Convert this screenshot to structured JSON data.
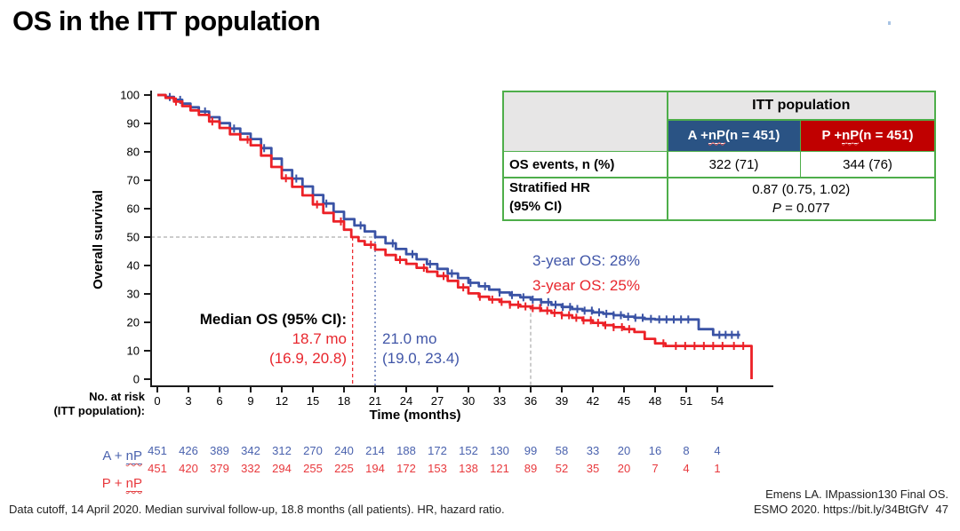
{
  "slide": {
    "title": "OS in the ITT population",
    "footnote": "Data cutoff, 14 April 2020. Median survival follow-up, 18.8 months (all patients). HR, hazard ratio.",
    "citation_line1": "Emens LA. IMpassion130 Final OS.",
    "citation_line2": "ESMO 2020. https://bit.ly/34BtGfV",
    "page_number": "47"
  },
  "colors": {
    "curve_blue": "#3a53a5",
    "curve_red": "#ec2127",
    "table_blue": "#2a5384",
    "table_red": "#c00000",
    "table_border_green": "#4eae4a",
    "dashed_gray": "#999999"
  },
  "results_table": {
    "group_header": "ITT population",
    "arm_a": {
      "pre": "A + ",
      "np": "nP",
      "post": " (n = 451)"
    },
    "arm_p": {
      "pre": "P + ",
      "np": "nP",
      "post": " (n = 451)"
    },
    "os_events": {
      "label": "OS events, n (%)",
      "a": "322 (71)",
      "p": "344 (76)"
    },
    "hr": {
      "label_line1": "Stratified HR",
      "label_line2": "(95% CI)",
      "value": "0.87 (0.75, 1.02)",
      "p_italic": "P",
      "p_rest": " = 0.077"
    }
  },
  "annotations": {
    "median_title": "Median OS (95% CI):",
    "red_median": "18.7 mo",
    "red_ci": "(16.9, 20.8)",
    "blue_median": "21.0 mo",
    "blue_ci": "(19.0, 23.4)",
    "blue_3yr": "3-year OS: 28%",
    "red_3yr": "3-year OS: 25%"
  },
  "no_at_risk": {
    "label_line1": "No. at risk",
    "label_line2": "(ITT population):",
    "arm_a": {
      "pre": "A + ",
      "np": "nP"
    },
    "arm_p": {
      "pre": "P + ",
      "np": "nP"
    },
    "rows": [
      {
        "name": "A + nP",
        "color": "#4a62ae",
        "values": [
          451,
          426,
          389,
          342,
          312,
          270,
          240,
          214,
          188,
          172,
          152,
          130,
          99,
          58,
          33,
          20,
          16,
          8,
          4
        ]
      },
      {
        "name": "P + nP",
        "color": "#e8393d",
        "values": [
          451,
          420,
          379,
          332,
          294,
          255,
          225,
          194,
          172,
          153,
          138,
          121,
          89,
          52,
          35,
          20,
          7,
          4,
          1
        ]
      }
    ]
  },
  "chart_data": {
    "type": "line",
    "style": "kaplan-meier-step",
    "title": "",
    "xlabel": "Time (months)",
    "ylabel": "Overall survival",
    "xlim": [
      0,
      57.5
    ],
    "ylim": [
      0,
      100
    ],
    "xticks": [
      0,
      3,
      6,
      9,
      12,
      15,
      18,
      21,
      24,
      27,
      30,
      33,
      36,
      39,
      42,
      45,
      48,
      51,
      54
    ],
    "yticks": [
      0,
      10,
      20,
      30,
      40,
      50,
      60,
      70,
      80,
      90,
      100
    ],
    "grid": false,
    "legend_position": "none",
    "median_survival_line_percent": 50,
    "three_year_month": 36,
    "series": [
      {
        "name": "A + nP",
        "color": "#3a53a5",
        "median_months": 21.0,
        "median_ci": [
          19.0,
          23.4
        ],
        "three_year_os_percent": 28,
        "points": [
          [
            0,
            100
          ],
          [
            0.8,
            99.3
          ],
          [
            1.6,
            98.3
          ],
          [
            2.4,
            97
          ],
          [
            3.2,
            95.7
          ],
          [
            4,
            94.2
          ],
          [
            5,
            92.2
          ],
          [
            6,
            90.1
          ],
          [
            7,
            88.2
          ],
          [
            8,
            86.4
          ],
          [
            9,
            84.5
          ],
          [
            10,
            81.3
          ],
          [
            11,
            77.6
          ],
          [
            12,
            73.6
          ],
          [
            13,
            70.6
          ],
          [
            14,
            67.8
          ],
          [
            15,
            64.8
          ],
          [
            16,
            61.8
          ],
          [
            17,
            58.9
          ],
          [
            18,
            56.3
          ],
          [
            19,
            54.1
          ],
          [
            20,
            52
          ],
          [
            21,
            50
          ],
          [
            22,
            47.8
          ],
          [
            23,
            45.8
          ],
          [
            24,
            44
          ],
          [
            25,
            42.2
          ],
          [
            26,
            40.5
          ],
          [
            27,
            38.8
          ],
          [
            28,
            37.2
          ],
          [
            29,
            35.6
          ],
          [
            30,
            33.9
          ],
          [
            31,
            32.7
          ],
          [
            32,
            31.5
          ],
          [
            33,
            30.5
          ],
          [
            34,
            29.6
          ],
          [
            35,
            28.8
          ],
          [
            36,
            28
          ],
          [
            37,
            27.1
          ],
          [
            38,
            26.2
          ],
          [
            39,
            25.4
          ],
          [
            40,
            24.7
          ],
          [
            41,
            24.1
          ],
          [
            42,
            23.5
          ],
          [
            43,
            23
          ],
          [
            44,
            22.5
          ],
          [
            45,
            22
          ],
          [
            46,
            21.6
          ],
          [
            47,
            21.2
          ],
          [
            48,
            21
          ],
          [
            51.8,
            21
          ],
          [
            52.2,
            17.6
          ],
          [
            53.6,
            15.6
          ],
          [
            56.2,
            15.6
          ]
        ],
        "censor_months": [
          1.2,
          2.2,
          4.6,
          7.4,
          10.3,
          13.4,
          16.3,
          19.6,
          22.7,
          24.6,
          26.3,
          28.4,
          30.2,
          31.6,
          33,
          34.2,
          35.3,
          36.2,
          37,
          37.7,
          38.4,
          39.1,
          39.8,
          40.5,
          41.2,
          41.9,
          42.6,
          43.3,
          44,
          44.7,
          45.4,
          46.1,
          46.8,
          47.6,
          48.4,
          49.1,
          49.8,
          50.5,
          51.2,
          54.2,
          54.8,
          55.4,
          56
        ]
      },
      {
        "name": "P + nP",
        "color": "#ec2127",
        "median_months": 18.7,
        "median_ci": [
          16.9,
          20.8
        ],
        "three_year_os_percent": 25,
        "points": [
          [
            0,
            100
          ],
          [
            0.8,
            99
          ],
          [
            1.6,
            97.7
          ],
          [
            2.4,
            96.1
          ],
          [
            3.2,
            94.6
          ],
          [
            4,
            93
          ],
          [
            5,
            90.7
          ],
          [
            6,
            88.4
          ],
          [
            7,
            86.2
          ],
          [
            8,
            84.3
          ],
          [
            9,
            82.3
          ],
          [
            10,
            78.7
          ],
          [
            11,
            74.7
          ],
          [
            12,
            70.7
          ],
          [
            13,
            67.7
          ],
          [
            14,
            64.7
          ],
          [
            15,
            61.5
          ],
          [
            16,
            58.5
          ],
          [
            17,
            55.5
          ],
          [
            18,
            52.6
          ],
          [
            18.7,
            50
          ],
          [
            19.4,
            48.6
          ],
          [
            20,
            47.3
          ],
          [
            21,
            45.6
          ],
          [
            22,
            43.7
          ],
          [
            23,
            42
          ],
          [
            24,
            40.6
          ],
          [
            25,
            39.2
          ],
          [
            26,
            37.8
          ],
          [
            27,
            36.3
          ],
          [
            28,
            34.6
          ],
          [
            29,
            32.3
          ],
          [
            30,
            30.2
          ],
          [
            31,
            29
          ],
          [
            32,
            28
          ],
          [
            33,
            27.2
          ],
          [
            34,
            26.2
          ],
          [
            35,
            25.6
          ],
          [
            36,
            25
          ],
          [
            37,
            24.1
          ],
          [
            38,
            23.3
          ],
          [
            39,
            22.5
          ],
          [
            40,
            21.6
          ],
          [
            41,
            20.7
          ],
          [
            42,
            19.8
          ],
          [
            43,
            19
          ],
          [
            44,
            18.3
          ],
          [
            45,
            17.6
          ],
          [
            46,
            16.6
          ],
          [
            47,
            14.2
          ],
          [
            48,
            12.6
          ],
          [
            49,
            11.7
          ],
          [
            57.2,
            11.7
          ],
          [
            57.3,
            0
          ]
        ],
        "censor_months": [
          1.8,
          5.3,
          8.7,
          12.4,
          15.4,
          17.7,
          20.6,
          23.4,
          25.7,
          27.6,
          29.5,
          31.1,
          32.3,
          33.2,
          34,
          34.8,
          35.5,
          36.2,
          36.9,
          37.6,
          38.3,
          39,
          39.7,
          40.4,
          41.1,
          41.8,
          42.5,
          43.2,
          44,
          44.8,
          45.5,
          48.8,
          50,
          50.9,
          51.8,
          52.7,
          53.6,
          54.5,
          55.6,
          56.5
        ]
      }
    ]
  }
}
